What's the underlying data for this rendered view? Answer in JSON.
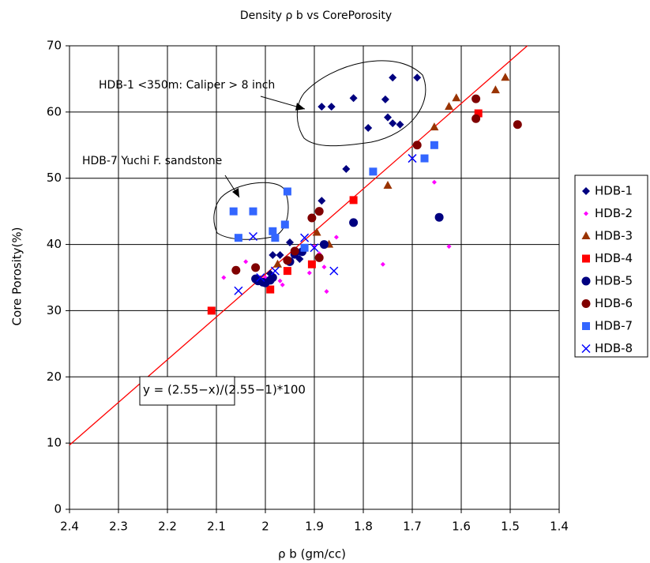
{
  "chart_data": {
    "type": "scatter",
    "title": "Density ρ b vs CorePorosity",
    "x_label": "ρ b (gm/cc)",
    "y_label": "Core Porosity(%)",
    "xlim": [
      2.4,
      1.4
    ],
    "xticks": [
      2.4,
      2.3,
      2.2,
      2.1,
      2.0,
      1.9,
      1.8,
      1.7,
      1.6,
      1.5,
      1.4
    ],
    "ylim": [
      0,
      70
    ],
    "yticks": [
      0,
      10,
      20,
      30,
      40,
      50,
      60,
      70
    ],
    "grid": true,
    "legend": "right",
    "annotations": [
      "HDB-1 <350m: Caliper > 8 inch",
      "HDB-7 Yuchi F. sandstone",
      "y = (2.55−x)/(2.55−1)*100"
    ],
    "fit_line": {
      "color": "#ff0000",
      "x": [
        2.4,
        1.465
      ],
      "y": [
        9.7,
        70
      ]
    },
    "series": [
      {
        "name": "HDB-1",
        "marker": "diamond",
        "color": "#000080",
        "x": [
          1.74,
          1.69,
          1.885,
          1.865,
          1.82,
          1.755,
          1.79,
          1.75,
          1.74,
          1.725,
          1.835,
          1.885,
          1.985,
          1.95,
          1.97,
          1.93,
          1.99
        ],
        "values": [
          65.2,
          65.2,
          60.8,
          60.8,
          62.1,
          61.9,
          57.6,
          59.2,
          58.3,
          58.1,
          51.4,
          46.6,
          38.4,
          40.3,
          38.4,
          37.8,
          35.6
        ]
      },
      {
        "name": "HDB-2",
        "marker": "small-diamond",
        "color": "#ff00ff",
        "x": [
          1.655,
          1.625,
          1.76,
          1.875,
          1.855,
          2.085,
          2.04,
          2.0,
          1.965,
          1.97,
          1.88,
          1.89,
          1.91,
          1.9
        ],
        "values": [
          49.4,
          39.7,
          37,
          32.9,
          41.1,
          35,
          37.4,
          35,
          33.9,
          34.5,
          36.6,
          38.6,
          35.7,
          39.7
        ]
      },
      {
        "name": "HDB-3",
        "marker": "triangle",
        "color": "#993300",
        "x": [
          1.51,
          1.53,
          1.61,
          1.625,
          1.655,
          1.75,
          1.895,
          1.87,
          1.975
        ],
        "values": [
          65.2,
          63.3,
          62.1,
          60.8,
          57.7,
          48.9,
          41.8,
          40,
          37
        ]
      },
      {
        "name": "HDB-4",
        "marker": "square",
        "color": "#ff0000",
        "x": [
          2.11,
          1.565,
          1.82,
          1.905,
          1.955,
          1.99,
          2.015
        ],
        "values": [
          30,
          59.8,
          46.7,
          37,
          36,
          33.2,
          34.7
        ]
      },
      {
        "name": "HDB-5",
        "marker": "circle",
        "color": "#000080",
        "x": [
          1.645,
          1.82,
          1.88,
          1.925,
          1.94,
          1.95,
          2.02,
          2.005,
          2.0,
          1.99,
          2.015,
          1.985
        ],
        "values": [
          44.1,
          43.3,
          40,
          38.9,
          38.5,
          37.4,
          34.8,
          34.3,
          34.2,
          34.6,
          34.5,
          35
        ]
      },
      {
        "name": "HDB-6",
        "marker": "circle",
        "color": "#800000",
        "x": [
          1.485,
          1.57,
          1.57,
          1.69,
          1.905,
          1.89,
          1.89,
          2.06,
          2.02,
          1.955,
          1.94
        ],
        "values": [
          58.1,
          62,
          59,
          55,
          44,
          45,
          38,
          36.1,
          36.5,
          37.6,
          39
        ]
      },
      {
        "name": "HDB-7",
        "marker": "square",
        "color": "#3366ff",
        "x": [
          1.655,
          1.675,
          1.78,
          1.955,
          2.065,
          2.025,
          1.96,
          1.985,
          2.055,
          1.98,
          1.92
        ],
        "values": [
          55,
          53,
          51,
          48,
          45,
          45,
          43,
          42,
          41,
          41,
          39.5
        ]
      },
      {
        "name": "HDB-8",
        "marker": "x",
        "color": "#0000ff",
        "x": [
          1.7,
          2.025,
          1.92,
          1.86,
          2.055,
          2.01,
          1.98,
          1.9
        ],
        "values": [
          53,
          41.2,
          41,
          36,
          33,
          35,
          36,
          39.5
        ]
      }
    ]
  }
}
